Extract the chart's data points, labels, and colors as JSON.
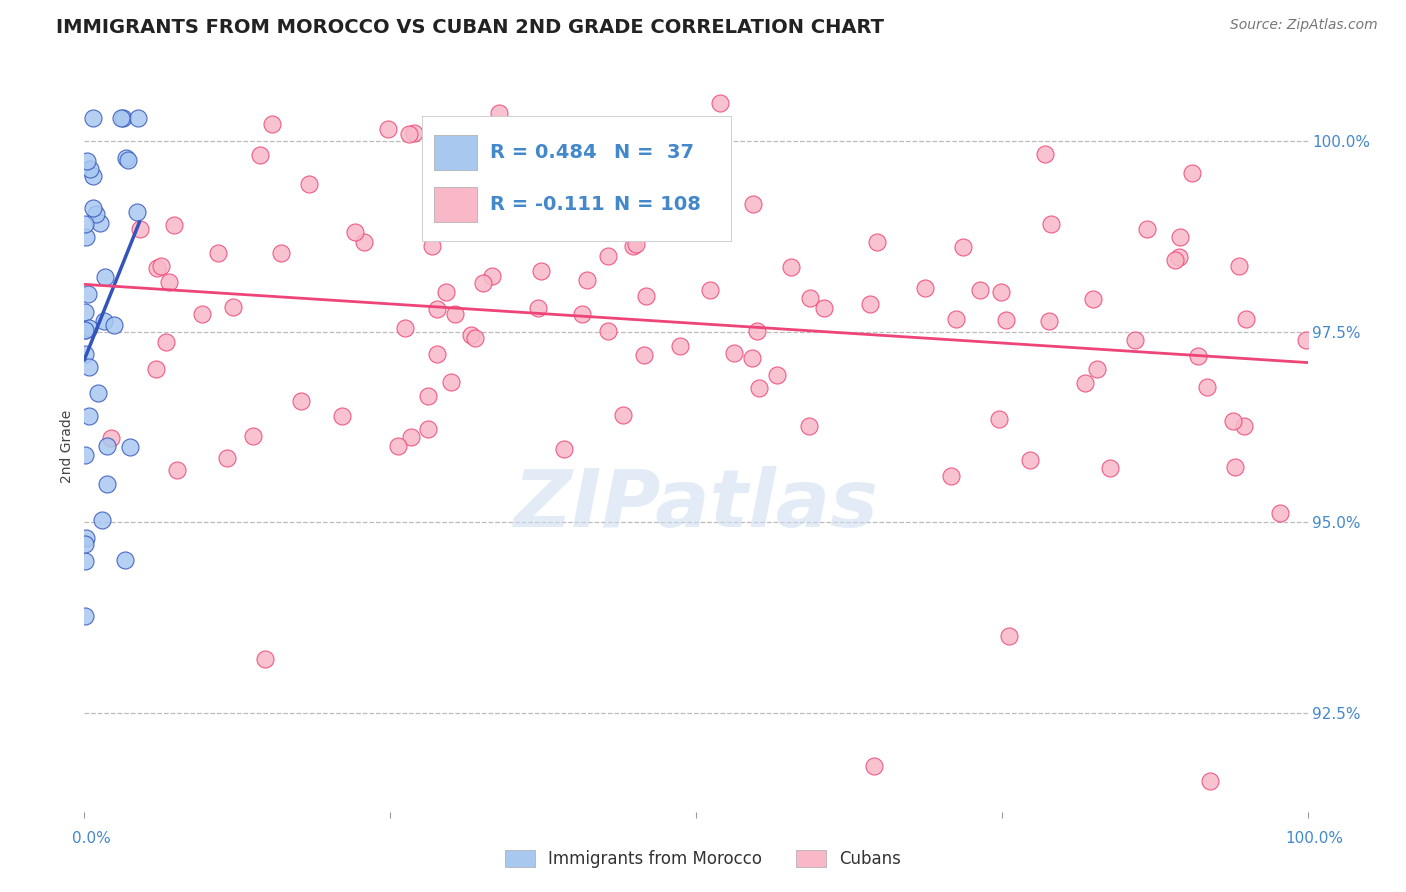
{
  "title": "IMMIGRANTS FROM MOROCCO VS CUBAN 2ND GRADE CORRELATION CHART",
  "source": "Source: ZipAtlas.com",
  "ylabel": "2nd Grade",
  "xlim": [
    0.0,
    100.0
  ],
  "ylim": [
    91.2,
    100.8
  ],
  "yticks": [
    92.5,
    95.0,
    97.5,
    100.0
  ],
  "ytick_labels": [
    "92.5%",
    "95.0%",
    "97.5%",
    "100.0%"
  ],
  "R_morocco": 0.484,
  "N_morocco": 37,
  "R_cuban": -0.111,
  "N_cuban": 108,
  "color_morocco": "#A8C8F0",
  "color_cuban": "#F8B8C8",
  "trendline_color_morocco": "#3355BB",
  "trendline_color_cuban": "#EE4477",
  "watermark": "ZIPatlas",
  "background_color": "#FFFFFF",
  "grid_color": "#BBBBBB",
  "title_fontsize": 14,
  "axis_label_fontsize": 10,
  "tick_fontsize": 11,
  "legend_fontsize": 14,
  "source_fontsize": 10,
  "morocco_seed": 12,
  "cuban_seed": 77
}
